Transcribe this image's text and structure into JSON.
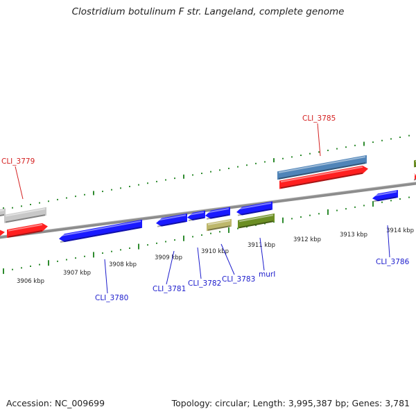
{
  "title": "Clostridium botulinum F str. Langeland, complete genome",
  "footer": {
    "accession": "Accession: NC_009699",
    "info": "Topology: circular; Length: 3,995,387 bp; Genes: 3,781"
  },
  "colors": {
    "red": "#ff2020",
    "blue": "#1a1aff",
    "gray": "#c8c8c8",
    "steel": "#4f84b8",
    "khaki": "#bdb76b",
    "olive": "#6b8e23",
    "green_tick": "#2e8b2e",
    "backbone": "#8c8c8c",
    "label_red": "#d42020",
    "label_blue": "#1a1acc"
  },
  "scale_labels": [
    "3906 kbp",
    "3907 kbp",
    "3908 kbp",
    "3909 kbp",
    "3910 kbp",
    "3911 kbp",
    "3912 kbp",
    "3913 kbp",
    "3914 kbp"
  ],
  "gene_labels": [
    {
      "text": "CLI_3779",
      "color": "red"
    },
    {
      "text": "CLI_3785",
      "color": "red"
    },
    {
      "text": "CLI_3780",
      "color": "blue"
    },
    {
      "text": "CLI_3781",
      "color": "blue"
    },
    {
      "text": "CLI_3782",
      "color": "blue"
    },
    {
      "text": "CLI_3783",
      "color": "blue"
    },
    {
      "text": "murI",
      "color": "blue"
    },
    {
      "text": "CLI_3786",
      "color": "blue"
    }
  ]
}
